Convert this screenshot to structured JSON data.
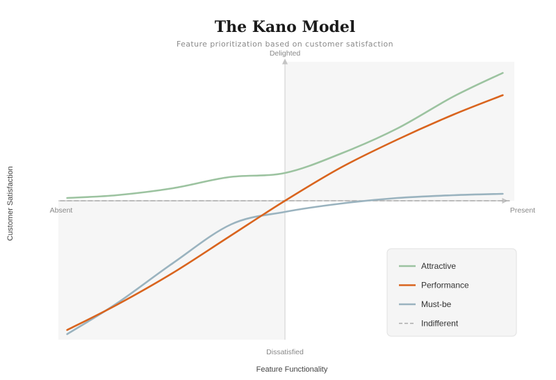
{
  "chart_data": {
    "type": "line",
    "title": "The Kano Model",
    "subtitle": "Feature prioritization based on customer satisfaction",
    "xlabel": "Feature Functionality",
    "ylabel": "Customer Satisfaction",
    "x_axis_labels": {
      "min": "Absent",
      "max": "Present"
    },
    "y_axis_labels": {
      "max": "Delighted",
      "min": "Dissatisfied"
    },
    "xlim": [
      -1,
      1
    ],
    "ylim": [
      -1,
      1
    ],
    "legend_position": "bottom-right",
    "shaded_quadrants": [
      "top-right",
      "bottom-left"
    ],
    "series": [
      {
        "name": "Attractive",
        "color": "#9cc3a0",
        "dashed": false,
        "x": [
          -0.97,
          -0.75,
          -0.5,
          -0.25,
          0.0,
          0.25,
          0.5,
          0.75,
          0.97
        ],
        "y": [
          0.02,
          0.04,
          0.09,
          0.17,
          0.2,
          0.34,
          0.52,
          0.75,
          0.92
        ]
      },
      {
        "name": "Performance",
        "color": "#d9641e",
        "dashed": false,
        "x": [
          -0.97,
          -0.75,
          -0.5,
          -0.25,
          0.0,
          0.25,
          0.5,
          0.75,
          0.97
        ],
        "y": [
          -0.93,
          -0.75,
          -0.52,
          -0.26,
          0.0,
          0.24,
          0.44,
          0.62,
          0.76
        ]
      },
      {
        "name": "Must-be",
        "color": "#9ab3bf",
        "dashed": false,
        "x": [
          -0.97,
          -0.75,
          -0.5,
          -0.24,
          0.0,
          0.25,
          0.5,
          0.75,
          0.97
        ],
        "y": [
          -0.96,
          -0.74,
          -0.45,
          -0.17,
          -0.08,
          -0.02,
          0.02,
          0.04,
          0.05
        ]
      },
      {
        "name": "Indifferent",
        "color": "#aaaaaa",
        "dashed": true,
        "x": [
          -1.0,
          1.0
        ],
        "y": [
          0.0,
          0.0
        ]
      }
    ]
  }
}
